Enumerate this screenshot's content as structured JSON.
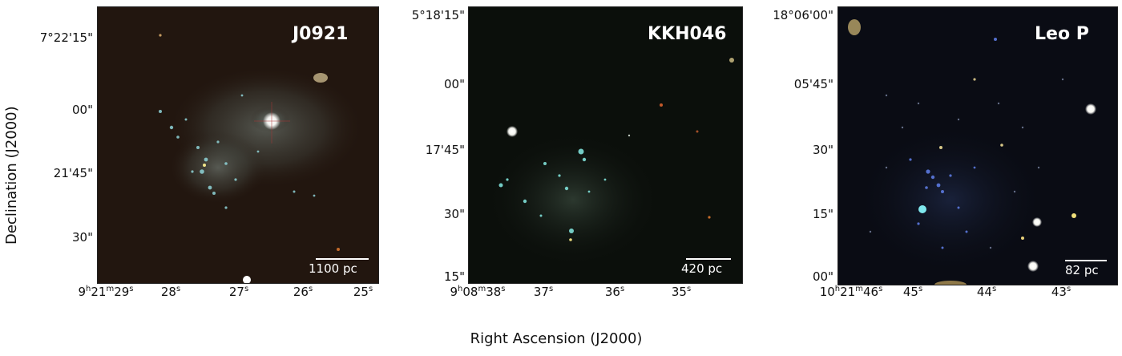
{
  "figure": {
    "ylabel": "Declination (J2000)",
    "xlabel": "Right Ascension (J2000)"
  },
  "panels": [
    {
      "id": "j0921",
      "title": "J0921",
      "scale_label": "1100 pc",
      "y_ticks": [
        "7°22'15\"",
        "00\"",
        "21'45\"",
        "30\""
      ],
      "x_ticks": [
        {
          "text": "9h21m29s",
          "html": "9<sup>h</sup>21<sup>m</sup>29<sup>s</sup>"
        },
        {
          "text": "28s",
          "html": "28<sup>s</sup>"
        },
        {
          "text": "27s",
          "html": "27<sup>s</sup>"
        },
        {
          "text": "26s",
          "html": "26<sup>s</sup>"
        },
        {
          "text": "25s",
          "html": "25<sup>s</sup>"
        }
      ]
    },
    {
      "id": "kkh046",
      "title": "KKH046",
      "scale_label": "420 pc",
      "y_ticks": [
        "5°18'15\"",
        "00\"",
        "17'45\"",
        "30\"",
        "15\""
      ],
      "x_ticks": [
        {
          "text": "9h08m38s",
          "html": "9<sup>h</sup>08<sup>m</sup>38<sup>s</sup>"
        },
        {
          "text": "37s",
          "html": "37<sup>s</sup>"
        },
        {
          "text": "36s",
          "html": "36<sup>s</sup>"
        },
        {
          "text": "35s",
          "html": "35<sup>s</sup>"
        }
      ]
    },
    {
      "id": "leop",
      "title": "Leo P",
      "scale_label": "82 pc",
      "y_ticks": [
        "18°06'00\"",
        "05'45\"",
        "30\"",
        "15\"",
        "00\""
      ],
      "x_ticks": [
        {
          "text": "10h21m46s",
          "html": "10<sup>h</sup>21<sup>m</sup>46<sup>s</sup>"
        },
        {
          "text": "45s",
          "html": "45<sup>s</sup>"
        },
        {
          "text": "44s",
          "html": "44<sup>s</sup>"
        },
        {
          "text": "43s",
          "html": "43<sup>s</sup>"
        }
      ]
    }
  ]
}
